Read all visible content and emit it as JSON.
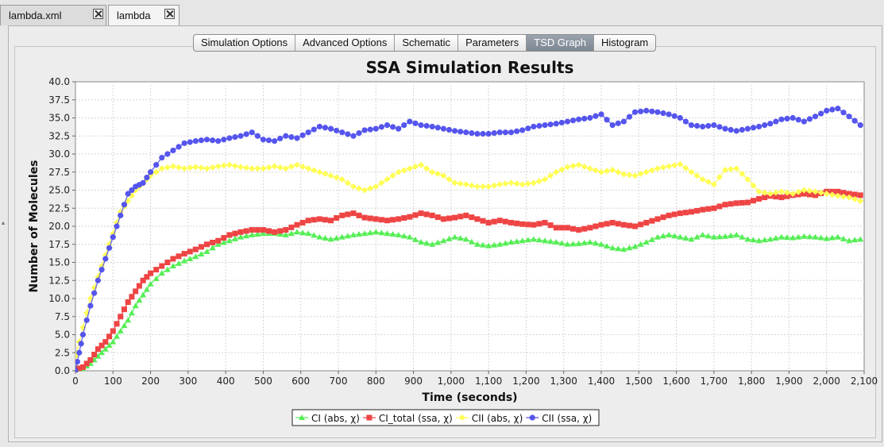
{
  "doc_tabs": [
    {
      "label": "lambda.xml",
      "active": false
    },
    {
      "label": "lambda",
      "active": true
    }
  ],
  "view_tabs": [
    {
      "label": "Simulation Options",
      "selected": false
    },
    {
      "label": "Advanced Options",
      "selected": false
    },
    {
      "label": "Schematic",
      "selected": false
    },
    {
      "label": "Parameters",
      "selected": false
    },
    {
      "label": "TSD Graph",
      "selected": true
    },
    {
      "label": "Histogram",
      "selected": false
    }
  ],
  "chart_data": {
    "type": "line",
    "title": "SSA Simulation Results",
    "xlabel": "Time (seconds)",
    "ylabel": "Number of Molecules",
    "xlim": [
      0,
      2100
    ],
    "ylim": [
      0,
      40
    ],
    "x_ticks": [
      "0",
      "100",
      "200",
      "300",
      "400",
      "500",
      "600",
      "700",
      "800",
      "900",
      "1,000",
      "1,100",
      "1,200",
      "1,300",
      "1,400",
      "1,500",
      "1,600",
      "1,700",
      "1,800",
      "1,900",
      "2,000",
      "2,100"
    ],
    "y_ticks": [
      "0.0",
      "2.5",
      "5.0",
      "7.5",
      "10.0",
      "12.5",
      "15.0",
      "17.5",
      "20.0",
      "22.5",
      "25.0",
      "27.5",
      "30.0",
      "32.5",
      "35.0",
      "37.5",
      "40.0"
    ],
    "grid": true,
    "legend_position": "bottom",
    "series": [
      {
        "name": "CI (abs, χ)",
        "color": "#55ee55",
        "marker": "triangle",
        "x": [
          0,
          20,
          40,
          60,
          80,
          100,
          120,
          140,
          160,
          180,
          200,
          230,
          260,
          290,
          320,
          350,
          380,
          410,
          440,
          470,
          500,
          530,
          560,
          590,
          620,
          650,
          680,
          710,
          740,
          770,
          800,
          830,
          860,
          890,
          920,
          950,
          980,
          1010,
          1040,
          1070,
          1100,
          1130,
          1160,
          1190,
          1220,
          1250,
          1280,
          1310,
          1340,
          1370,
          1400,
          1430,
          1460,
          1490,
          1520,
          1550,
          1580,
          1610,
          1640,
          1670,
          1700,
          1730,
          1760,
          1790,
          1820,
          1850,
          1880,
          1910,
          1940,
          1970,
          2000,
          2030,
          2060,
          2090
        ],
        "values": [
          0.2,
          0.3,
          1.0,
          2.0,
          3.0,
          4.0,
          5.5,
          7.0,
          9.0,
          10.5,
          12.0,
          13.5,
          14.5,
          15.2,
          15.8,
          16.5,
          17.5,
          18.0,
          18.5,
          18.8,
          19.0,
          19.0,
          18.8,
          19.2,
          19.0,
          18.5,
          18.2,
          18.5,
          18.8,
          19.0,
          19.2,
          19.0,
          18.8,
          18.5,
          17.8,
          17.5,
          18.0,
          18.5,
          18.2,
          17.5,
          17.3,
          17.5,
          17.8,
          18.0,
          18.2,
          18.0,
          17.8,
          17.5,
          17.6,
          17.8,
          17.5,
          17.0,
          16.8,
          17.2,
          17.8,
          18.5,
          18.8,
          18.5,
          18.2,
          18.8,
          18.5,
          18.6,
          18.8,
          18.2,
          18.0,
          18.2,
          18.5,
          18.4,
          18.6,
          18.5,
          18.3,
          18.5,
          18.0,
          18.2
        ]
      },
      {
        "name": "CI_total (ssa, χ)",
        "color": "#ee4444",
        "marker": "square",
        "x": [
          0,
          20,
          40,
          60,
          80,
          100,
          120,
          140,
          160,
          180,
          200,
          230,
          260,
          290,
          320,
          350,
          380,
          410,
          440,
          470,
          500,
          530,
          560,
          590,
          620,
          650,
          680,
          710,
          740,
          770,
          800,
          830,
          860,
          890,
          920,
          950,
          980,
          1010,
          1040,
          1070,
          1100,
          1130,
          1160,
          1190,
          1220,
          1250,
          1280,
          1310,
          1340,
          1370,
          1400,
          1430,
          1460,
          1490,
          1520,
          1550,
          1580,
          1610,
          1640,
          1670,
          1700,
          1730,
          1760,
          1790,
          1820,
          1850,
          1880,
          1910,
          1940,
          1970,
          2000,
          2030,
          2060,
          2090
        ],
        "values": [
          0.2,
          0.5,
          1.5,
          3.0,
          4.0,
          5.5,
          7.5,
          9.5,
          11.0,
          12.5,
          13.5,
          14.5,
          15.5,
          16.2,
          16.8,
          17.5,
          18.0,
          18.8,
          19.2,
          19.5,
          19.5,
          19.2,
          19.5,
          20.2,
          20.8,
          21.0,
          20.8,
          21.5,
          21.8,
          21.2,
          21.0,
          20.8,
          21.0,
          21.3,
          21.8,
          21.5,
          21.0,
          21.2,
          21.5,
          21.0,
          20.5,
          20.8,
          20.5,
          20.3,
          20.2,
          20.5,
          19.8,
          19.8,
          19.5,
          19.8,
          20.2,
          20.5,
          20.2,
          20.0,
          20.5,
          21.0,
          21.5,
          21.8,
          22.0,
          22.3,
          22.5,
          23.0,
          23.2,
          23.3,
          23.8,
          24.2,
          24.0,
          24.3,
          24.5,
          24.3,
          24.8,
          24.8,
          24.5,
          24.3
        ]
      },
      {
        "name": "CII (abs, χ)",
        "color": "#ffff55",
        "marker": "diamond",
        "x": [
          0,
          20,
          40,
          60,
          80,
          100,
          120,
          140,
          160,
          180,
          200,
          230,
          260,
          290,
          320,
          350,
          380,
          410,
          440,
          470,
          500,
          530,
          560,
          590,
          620,
          650,
          680,
          710,
          740,
          770,
          800,
          830,
          860,
          890,
          920,
          950,
          980,
          1010,
          1040,
          1070,
          1100,
          1130,
          1160,
          1190,
          1220,
          1250,
          1280,
          1310,
          1340,
          1370,
          1400,
          1430,
          1460,
          1490,
          1520,
          1550,
          1580,
          1610,
          1640,
          1670,
          1700,
          1730,
          1760,
          1790,
          1820,
          1850,
          1880,
          1910,
          1940,
          1970,
          2000,
          2030,
          2060,
          2090
        ],
        "values": [
          2.0,
          6.0,
          10.0,
          13.0,
          16.0,
          19.0,
          22.0,
          23.5,
          25.0,
          26.0,
          27.0,
          28.0,
          28.3,
          28.0,
          28.2,
          28.0,
          28.3,
          28.5,
          28.2,
          28.0,
          28.0,
          28.3,
          28.0,
          28.5,
          28.0,
          27.5,
          27.0,
          26.5,
          25.5,
          25.0,
          25.5,
          26.5,
          27.5,
          28.0,
          28.5,
          27.5,
          27.0,
          26.0,
          25.8,
          25.5,
          25.5,
          25.8,
          26.0,
          25.8,
          26.0,
          26.5,
          27.5,
          28.2,
          28.5,
          28.0,
          27.5,
          27.8,
          27.2,
          27.0,
          27.5,
          28.0,
          28.3,
          28.6,
          27.5,
          26.5,
          25.8,
          27.8,
          28.0,
          26.5,
          24.8,
          24.5,
          24.8,
          24.5,
          25.0,
          24.8,
          24.5,
          24.2,
          24.0,
          23.5
        ]
      },
      {
        "name": "CII (ssa, χ)",
        "color": "#5555ee",
        "marker": "circle",
        "x": [
          0,
          10,
          20,
          40,
          60,
          80,
          100,
          120,
          140,
          160,
          180,
          200,
          230,
          260,
          290,
          320,
          350,
          380,
          410,
          440,
          470,
          500,
          530,
          560,
          590,
          620,
          650,
          680,
          710,
          740,
          770,
          800,
          830,
          860,
          890,
          920,
          950,
          980,
          1010,
          1040,
          1070,
          1100,
          1130,
          1160,
          1190,
          1220,
          1250,
          1280,
          1310,
          1340,
          1370,
          1400,
          1430,
          1460,
          1490,
          1520,
          1550,
          1580,
          1610,
          1640,
          1670,
          1700,
          1730,
          1760,
          1790,
          1820,
          1850,
          1880,
          1910,
          1940,
          1970,
          2000,
          2030,
          2060,
          2090
        ],
        "values": [
          0.0,
          2.5,
          5.0,
          9.0,
          12.5,
          15.5,
          18.5,
          21.5,
          24.5,
          25.5,
          26.0,
          27.5,
          29.5,
          30.5,
          31.5,
          31.8,
          32.0,
          31.8,
          32.2,
          32.5,
          33.0,
          32.0,
          31.8,
          32.5,
          32.2,
          33.0,
          33.8,
          33.5,
          33.0,
          32.5,
          33.3,
          33.5,
          34.0,
          33.5,
          34.5,
          34.0,
          33.8,
          33.5,
          33.2,
          33.0,
          32.8,
          32.8,
          33.0,
          33.0,
          33.3,
          33.8,
          34.0,
          34.2,
          34.5,
          34.8,
          35.0,
          35.5,
          34.0,
          34.5,
          35.8,
          36.0,
          35.8,
          35.5,
          35.0,
          34.0,
          33.8,
          34.0,
          33.5,
          33.2,
          33.5,
          33.8,
          34.2,
          34.8,
          35.0,
          34.5,
          35.2,
          36.0,
          36.3,
          35.2,
          34.0
        ]
      }
    ]
  }
}
